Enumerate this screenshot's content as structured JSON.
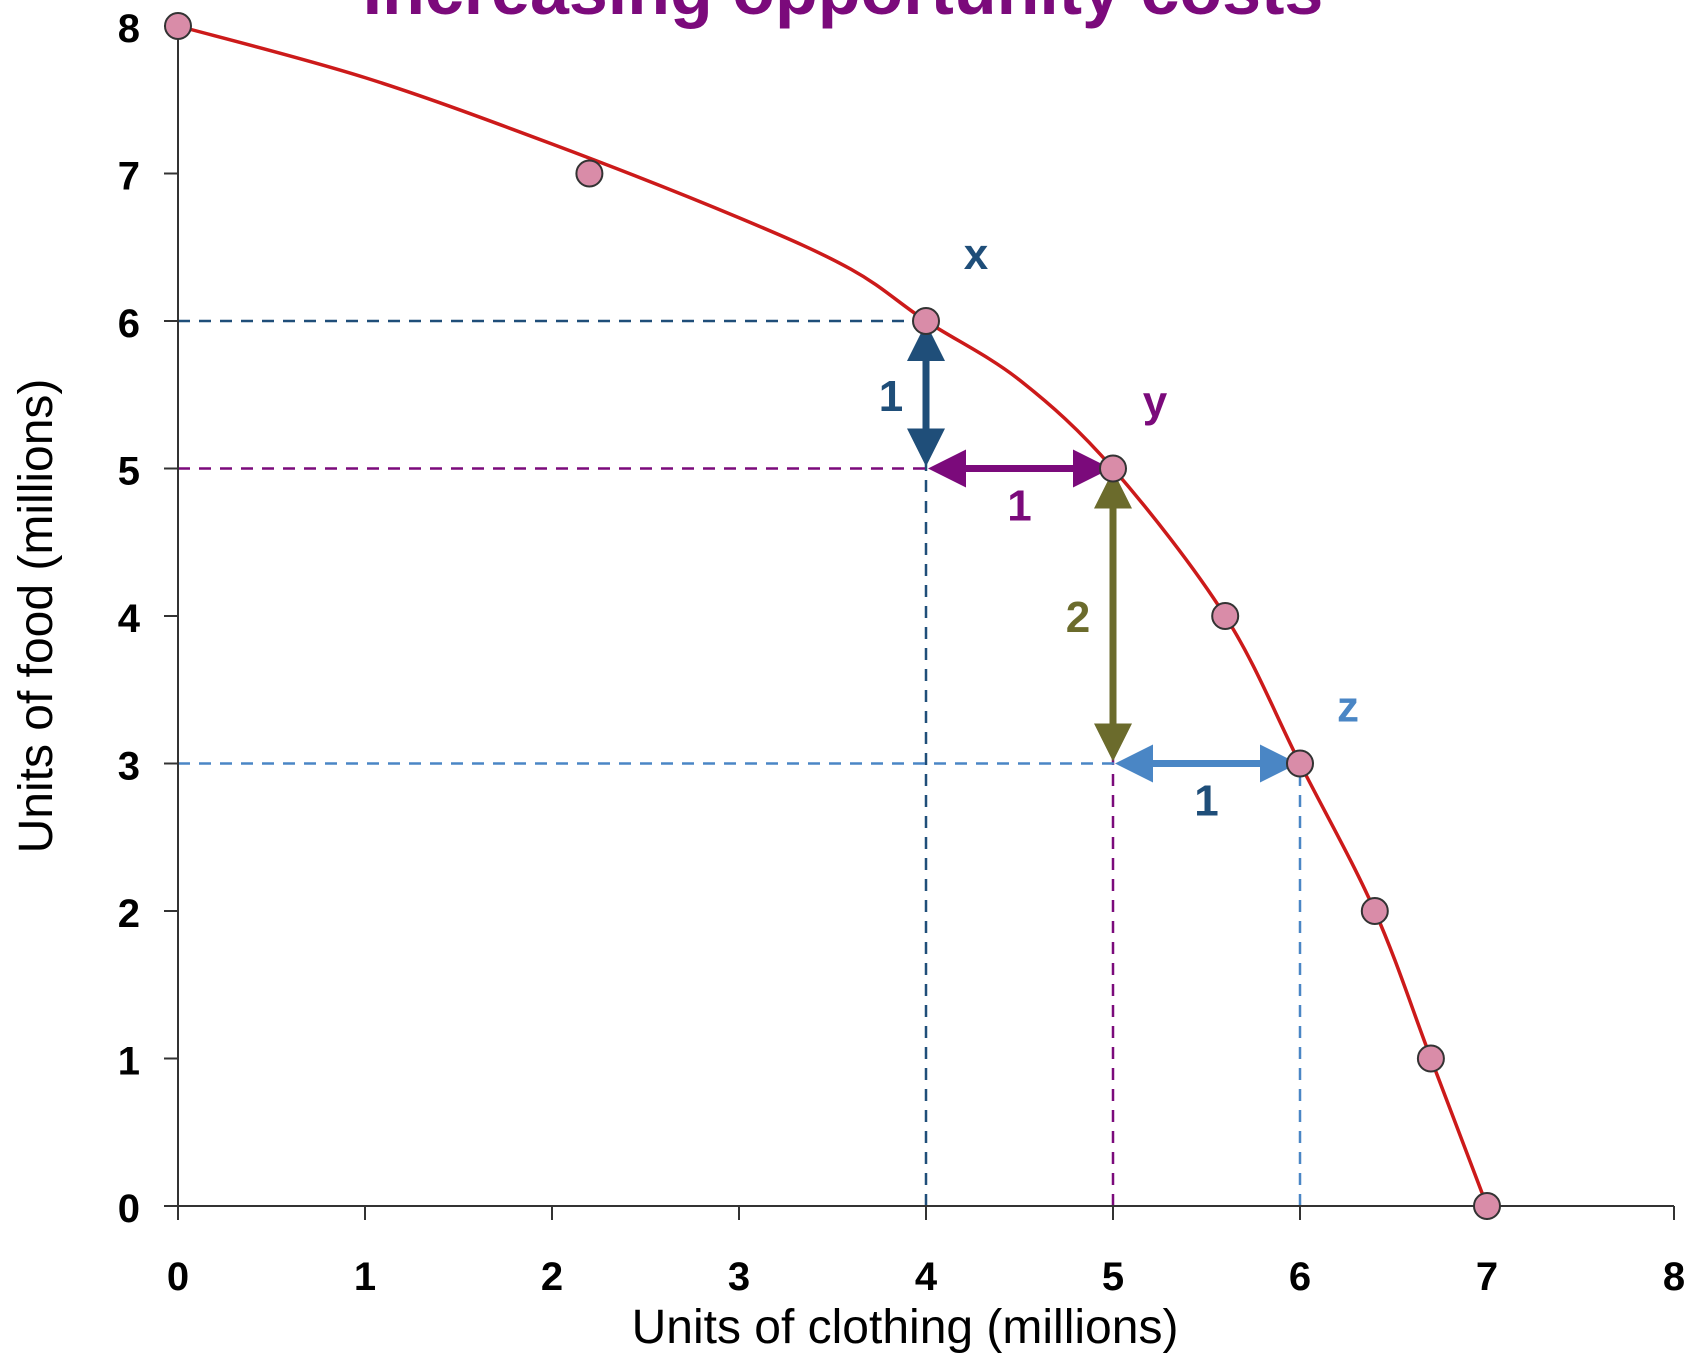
{
  "chart_data": {
    "type": "line",
    "title": "Increasing opportunity costs",
    "xlabel": "Units of clothing (millions)",
    "ylabel": "Units of food (millions)",
    "xlim": [
      0,
      8
    ],
    "ylim": [
      0,
      8
    ],
    "x_ticks": [
      "0",
      "1",
      "2",
      "3",
      "4",
      "5",
      "6",
      "7",
      "8"
    ],
    "y_ticks": [
      "0",
      "1",
      "2",
      "3",
      "4",
      "5",
      "6",
      "7",
      "8"
    ],
    "grid": false,
    "series": [
      {
        "color": "#cc1a1a",
        "marker_color": "#d98ca8",
        "curve": [
          [
            0,
            8
          ],
          [
            1,
            7.65
          ],
          [
            2,
            7.2
          ],
          [
            3,
            6.7
          ],
          [
            3.6,
            6.35
          ],
          [
            4,
            6
          ],
          [
            4.5,
            5.6
          ],
          [
            5,
            5
          ],
          [
            5.6,
            4
          ],
          [
            6,
            3
          ],
          [
            6.4,
            2
          ],
          [
            6.7,
            1
          ],
          [
            7,
            0
          ]
        ],
        "points": [
          {
            "x": 0,
            "y": 8
          },
          {
            "x": 2.2,
            "y": 7
          },
          {
            "x": 4,
            "y": 6
          },
          {
            "x": 5,
            "y": 5
          },
          {
            "x": 5.6,
            "y": 4
          },
          {
            "x": 6,
            "y": 3
          },
          {
            "x": 6.4,
            "y": 2
          },
          {
            "x": 6.7,
            "y": 1
          },
          {
            "x": 7,
            "y": 0
          }
        ]
      }
    ],
    "annotations": {
      "point_labels": [
        {
          "text": "x",
          "x": 4,
          "y": 6,
          "color": "#1f4e79"
        },
        {
          "text": "y",
          "x": 5,
          "y": 5,
          "color": "#7b0a7b"
        },
        {
          "text": "z",
          "x": 6,
          "y": 3,
          "color": "#4a86c5"
        }
      ],
      "arrows": [
        {
          "label": "1",
          "color": "#1f4e79",
          "from": [
            4,
            6
          ],
          "to": [
            4,
            5
          ]
        },
        {
          "label": "1",
          "color": "#7b0a7b",
          "from": [
            4,
            5
          ],
          "to": [
            5,
            5
          ]
        },
        {
          "label": "2",
          "color": "#6b6b2c",
          "from": [
            5,
            5
          ],
          "to": [
            5,
            3
          ]
        },
        {
          "label": "1",
          "color": "#4a86c5",
          "label_color": "#1f4e79",
          "from": [
            5,
            3
          ],
          "to": [
            6,
            3
          ]
        }
      ],
      "dashed_guides": [
        {
          "color": "#1f4e79",
          "y": 6,
          "x": 4
        },
        {
          "color": "#7b0a7b",
          "y": 5,
          "x": 5
        },
        {
          "color": "#4a86c5",
          "y": 3,
          "x": 6
        }
      ]
    },
    "title_color": "#7b0a7b"
  }
}
